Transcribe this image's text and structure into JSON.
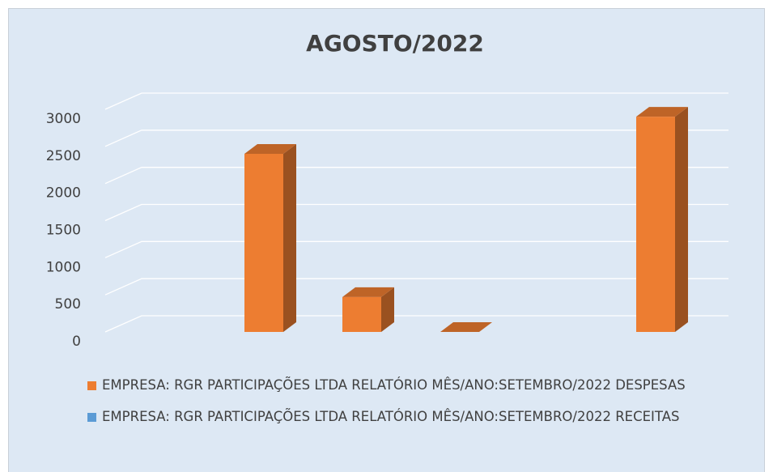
{
  "chart_data": {
    "type": "bar3d",
    "title": "AGOSTO/2022",
    "categories": [
      null,
      null,
      null,
      null,
      null
    ],
    "series": [
      {
        "name": "EMPRESA: RGR PARTICIPAÇÕES LTDA RELATÓRIO MÊS/ANO:SETEMBRO/2022 DESPESAS",
        "color": "#ed7d31",
        "values": [
          2400,
          470,
          0,
          null,
          2900
        ]
      },
      {
        "name": "EMPRESA: RGR PARTICIPAÇÕES LTDA RELATÓRIO MÊS/ANO:SETEMBRO/2022 RECEITAS",
        "color": "#5b9bd5",
        "values": [
          null,
          null,
          null,
          null,
          null
        ]
      }
    ],
    "ylim": [
      0,
      3000
    ],
    "yticks": [
      0,
      500,
      1000,
      1500,
      2000,
      2500,
      3000
    ],
    "grid": true,
    "legend": "bottom"
  }
}
